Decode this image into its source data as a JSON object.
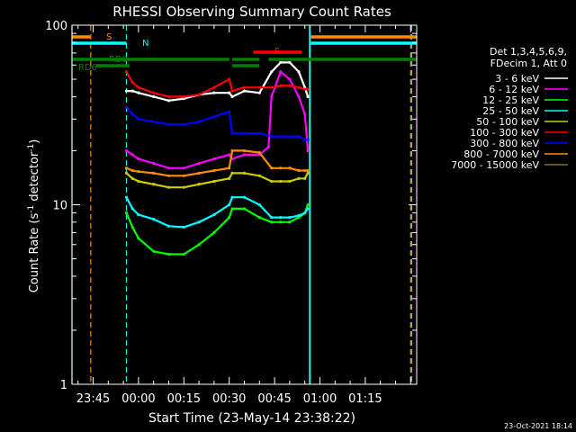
{
  "chart_data": {
    "type": "line",
    "title": "RHESSI Observing Summary Count Rates",
    "xlabel": "Start Time (23-May-14 23:38:22)",
    "ylabel": "Count Rate (s",
    "ylabel_sup": "-1",
    "ylabel_tail": " detector",
    "ylabel_tail_sup": "-1",
    "ylabel_close": ")",
    "yscale": "log",
    "ylim": [
      1,
      100
    ],
    "ytick_labels": [
      {
        "label": "1",
        "value": 1
      },
      {
        "label": "10",
        "value": 10
      },
      {
        "label": "100",
        "value": 100
      }
    ],
    "xlim_min": [
      -22,
      92
    ],
    "xtick_labels": [
      {
        "label": "23:45",
        "min": -15
      },
      {
        "label": "00:00",
        "min": 0
      },
      {
        "label": "00:15",
        "min": 15
      },
      {
        "label": "00:30",
        "min": 30
      },
      {
        "label": "00:45",
        "min": 45
      },
      {
        "label": "01:00",
        "min": 60
      },
      {
        "label": "01:15",
        "min": 75
      }
    ],
    "legend_header": [
      "Det 1,3,4,5,6,9,",
      "FDecim 1, Att 0"
    ],
    "series": [
      {
        "name": "3 - 6 keV",
        "color": "#ffffff",
        "x": [
          -4,
          -2,
          0,
          5,
          10,
          15,
          20,
          25,
          30,
          31,
          35,
          40,
          44,
          47,
          50,
          53,
          55,
          56
        ],
        "values": [
          43,
          43,
          42,
          40,
          38,
          39,
          41,
          42,
          42,
          40,
          43,
          42,
          55,
          62,
          62,
          55,
          45,
          40
        ]
      },
      {
        "name": "6 - 12 keV",
        "color": "#ff00ff",
        "x": [
          -4,
          -2,
          0,
          5,
          10,
          15,
          20,
          25,
          30,
          31,
          35,
          40,
          43,
          44,
          47,
          50,
          53,
          55,
          56
        ],
        "values": [
          20,
          19,
          18,
          17,
          16,
          16,
          17,
          18,
          19,
          18,
          19,
          19,
          21,
          40,
          55,
          50,
          40,
          32,
          20
        ]
      },
      {
        "name": "12 - 25 keV",
        "color": "#00ff00",
        "x": [
          -4,
          -2,
          0,
          5,
          10,
          15,
          20,
          25,
          30,
          31,
          35,
          40,
          44,
          47,
          50,
          53,
          55,
          56
        ],
        "values": [
          9,
          7.5,
          6.5,
          5.5,
          5.3,
          5.3,
          6,
          7,
          8.5,
          9.5,
          9.5,
          8.5,
          8,
          8,
          8,
          8.5,
          9,
          10
        ]
      },
      {
        "name": "25 - 50 keV",
        "color": "#00ffff",
        "x": [
          -4,
          -2,
          0,
          5,
          10,
          15,
          20,
          25,
          30,
          31,
          35,
          40,
          44,
          47,
          50,
          53,
          55,
          56
        ],
        "values": [
          11,
          9.5,
          8.8,
          8.3,
          7.6,
          7.5,
          8,
          8.8,
          10,
          11,
          11,
          10,
          8.5,
          8.5,
          8.5,
          8.7,
          9,
          9.5
        ]
      },
      {
        "name": "50 - 100 keV",
        "color": "#cccc00",
        "x": [
          -4,
          -2,
          0,
          5,
          10,
          15,
          20,
          25,
          30,
          31,
          35,
          40,
          44,
          47,
          50,
          53,
          55,
          56
        ],
        "values": [
          15,
          14,
          13.5,
          13,
          12.5,
          12.5,
          13,
          13.5,
          14,
          15,
          15,
          14.5,
          13.5,
          13.5,
          13.5,
          14,
          14,
          15
        ]
      },
      {
        "name": "100 - 300 keV",
        "color": "#ff0000",
        "x": [
          -4,
          -2,
          0,
          5,
          10,
          15,
          20,
          25,
          30,
          31,
          35,
          40,
          44,
          47,
          50,
          53,
          55,
          56
        ],
        "values": [
          55,
          48,
          45,
          42,
          40,
          40,
          41,
          45,
          50,
          43,
          45,
          45,
          45,
          46,
          46,
          45,
          44,
          44
        ]
      },
      {
        "name": "300 - 800 keV",
        "color": "#0000ff",
        "x": [
          -4,
          -2,
          0,
          5,
          10,
          15,
          20,
          25,
          30,
          31,
          35,
          40,
          44,
          47,
          50,
          53,
          55,
          56
        ],
        "values": [
          35,
          32,
          30,
          29,
          28,
          28,
          29,
          31,
          33,
          25,
          25,
          25,
          24,
          24,
          24,
          24,
          23,
          23
        ]
      },
      {
        "name": "800 - 7000 keV",
        "color": "#ff8c00",
        "x": [
          -4,
          -2,
          0,
          5,
          10,
          15,
          20,
          25,
          30,
          31,
          35,
          40,
          44,
          47,
          50,
          53,
          55,
          56
        ],
        "values": [
          16,
          15.5,
          15.3,
          15,
          14.5,
          14.5,
          15,
          15.5,
          16,
          20,
          20,
          19.5,
          16,
          16,
          16,
          15.5,
          15.5,
          15.5
        ]
      },
      {
        "name": "7000 - 15000 keV",
        "color": "#8b6914",
        "x": [],
        "values": []
      }
    ],
    "attenuator_bars": [
      {
        "label": "S",
        "color": "#ff8c00",
        "segments": [
          [
            -22,
            -16
          ],
          [
            57,
            92
          ]
        ]
      },
      {
        "label": "N",
        "color": "#00ffff",
        "segments": [
          [
            -22,
            -4
          ],
          [
            57,
            92
          ]
        ]
      },
      {
        "label": "F",
        "color": "#ff0000",
        "segments": [
          [
            38,
            54
          ]
        ]
      },
      {
        "label": "RD0",
        "color": "#008000",
        "segments": [
          [
            -22,
            30
          ],
          [
            31,
            40
          ],
          [
            43,
            92
          ]
        ]
      },
      {
        "label": "RD6",
        "color": "#008000",
        "segments": [
          [
            -14,
            -3
          ],
          [
            31,
            40
          ]
        ]
      }
    ],
    "vlines": [
      {
        "min": -15.8,
        "color": "#ff8c00",
        "style": "dashed"
      },
      {
        "min": -4,
        "color": "#00ffff",
        "style": "dashed"
      },
      {
        "min": 56.5,
        "color": "#ff8c00",
        "style": "solid"
      },
      {
        "min": 56.8,
        "color": "#00ffff",
        "style": "solid"
      },
      {
        "min": 90,
        "color": "#ff8c00",
        "style": "dashed"
      },
      {
        "min": 90.3,
        "color": "#00ffff",
        "style": "dashed"
      },
      {
        "min": -22,
        "color": "#00ffff",
        "style": "solid"
      }
    ],
    "grid": false,
    "legend_position": "right"
  },
  "footer": {
    "timestamp": "23-Oct-2021 18:14"
  }
}
